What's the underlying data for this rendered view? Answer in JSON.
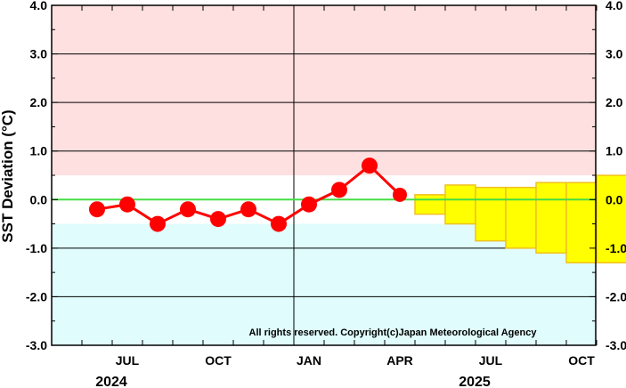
{
  "chart_data": {
    "type": "line",
    "ylabel": "SST Deviation (°C)",
    "ylim": [
      -3.0,
      4.0
    ],
    "yticks": [
      "4.0",
      "3.0",
      "2.0",
      "1.0",
      "0.0",
      "-1.0",
      "-2.0",
      "-3.0"
    ],
    "x_month_ticks": [
      {
        "label": "JUL",
        "date": "2024-07"
      },
      {
        "label": "OCT",
        "date": "2024-10"
      },
      {
        "label": "JAN",
        "date": "2025-01"
      },
      {
        "label": "APR",
        "date": "2025-04"
      },
      {
        "label": "JUL",
        "date": "2025-07"
      },
      {
        "label": "OCT",
        "date": "2025-10"
      }
    ],
    "year_labels": [
      {
        "label": "2024",
        "date": "2024-07"
      },
      {
        "label": "2025",
        "date": "2025-07"
      }
    ],
    "xlim": [
      "2024-05",
      "2025-12"
    ],
    "year_divider": "2024-12/2025-01",
    "bands": {
      "warm_threshold": 0.5,
      "cold_threshold": -0.5,
      "warm_color": "#ffe0e0",
      "cold_color": "#e0fcfc"
    },
    "zero_line_color": "#44dd44",
    "observed": {
      "color": "#ff0000",
      "x": [
        "2024-06",
        "2024-07",
        "2024-08",
        "2024-09",
        "2024-10",
        "2024-11",
        "2024-12",
        "2025-01",
        "2025-02",
        "2025-03",
        "2025-04"
      ],
      "y": [
        -0.2,
        -0.1,
        -0.5,
        -0.2,
        -0.4,
        -0.2,
        -0.5,
        -0.1,
        0.2,
        0.7,
        0.1
      ]
    },
    "forecast": {
      "fill_color": "#ffff00",
      "edge_color": "#f0c020",
      "x": [
        "2025-05",
        "2025-06",
        "2025-07",
        "2025-08",
        "2025-09",
        "2025-10",
        "2025-11"
      ],
      "low": [
        -0.3,
        -0.5,
        -0.85,
        -1.0,
        -1.1,
        -1.3,
        -1.3
      ],
      "high": [
        0.1,
        0.3,
        0.25,
        0.25,
        0.35,
        0.35,
        0.5
      ]
    },
    "annotation": "All rights reserved. Copyright(c)Japan Meteorological Agency"
  }
}
